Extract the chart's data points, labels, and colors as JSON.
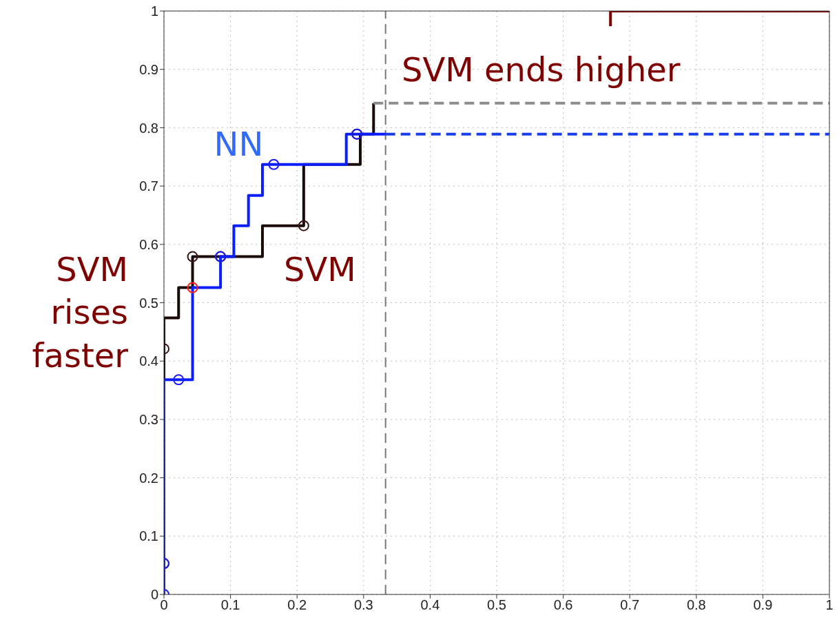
{
  "chart_data": {
    "type": "step",
    "xlim": [
      0,
      1
    ],
    "ylim": [
      0,
      1
    ],
    "xticks": [
      0,
      0.1,
      0.2,
      0.3,
      0.4,
      0.5,
      0.6,
      0.7,
      0.8,
      0.9,
      1
    ],
    "yticks": [
      0,
      0.1,
      0.2,
      0.3,
      0.4,
      0.5,
      0.6,
      0.7,
      0.8,
      0.9,
      1
    ],
    "grid": true,
    "annotations": [
      "SVM rises faster",
      "SVM ends higher"
    ],
    "ref_lines": [
      {
        "axis": "x",
        "value": 0.333,
        "color": "#777777",
        "line_style": "dashed"
      }
    ],
    "series": [
      {
        "name": "SVM",
        "color": "#1a0a0a",
        "x": [
          0,
          0,
          0.022,
          0.043,
          0.148,
          0.21,
          0.295,
          0.315
        ],
        "values": [
          0,
          0.474,
          0.526,
          0.579,
          0.632,
          0.737,
          0.789,
          0.842
        ]
      },
      {
        "name": "NN",
        "color": "#0a1eff",
        "x": [
          0,
          0,
          0.043,
          0.085,
          0.105,
          0.127,
          0.148,
          0.274,
          0.333
        ],
        "values": [
          0,
          0.368,
          0.526,
          0.579,
          0.632,
          0.684,
          0.737,
          0.789,
          0.789
        ]
      },
      {
        "type": "line",
        "color": "#8c8c8c",
        "line_style": "dashed",
        "x": [
          0.315,
          1
        ],
        "values": [
          0.842,
          0.842
        ]
      },
      {
        "type": "line",
        "color": "#1a3fe8",
        "line_style": "dashed",
        "x": [
          0.333,
          1
        ],
        "values": [
          0.789,
          0.789
        ]
      },
      {
        "type": "line",
        "color": "#7f0000",
        "x": [
          0.671,
          0.671,
          1
        ],
        "values": [
          0.974,
          1,
          1
        ]
      },
      {
        "type": "scatter",
        "marker": "circle",
        "color": "#3a1414",
        "x": [
          0,
          0,
          0.043,
          0.085,
          0.21,
          0.29
        ],
        "values": [
          0.053,
          0.421,
          0.579,
          0.579,
          0.632,
          0.789
        ]
      },
      {
        "type": "scatter",
        "marker": "circle",
        "color": "#1a1aff",
        "colors": [
          "#1a1aff",
          "#1a1aff",
          "#1a1aff",
          "#ff2020",
          "#1a1aff",
          "#1a1aff",
          "#1a1aff"
        ],
        "x": [
          0,
          0,
          0.022,
          0.043,
          0.085,
          0.165,
          0.29
        ],
        "values": [
          0,
          0.053,
          0.368,
          0.526,
          0.579,
          0.737,
          0.789
        ]
      }
    ]
  }
}
